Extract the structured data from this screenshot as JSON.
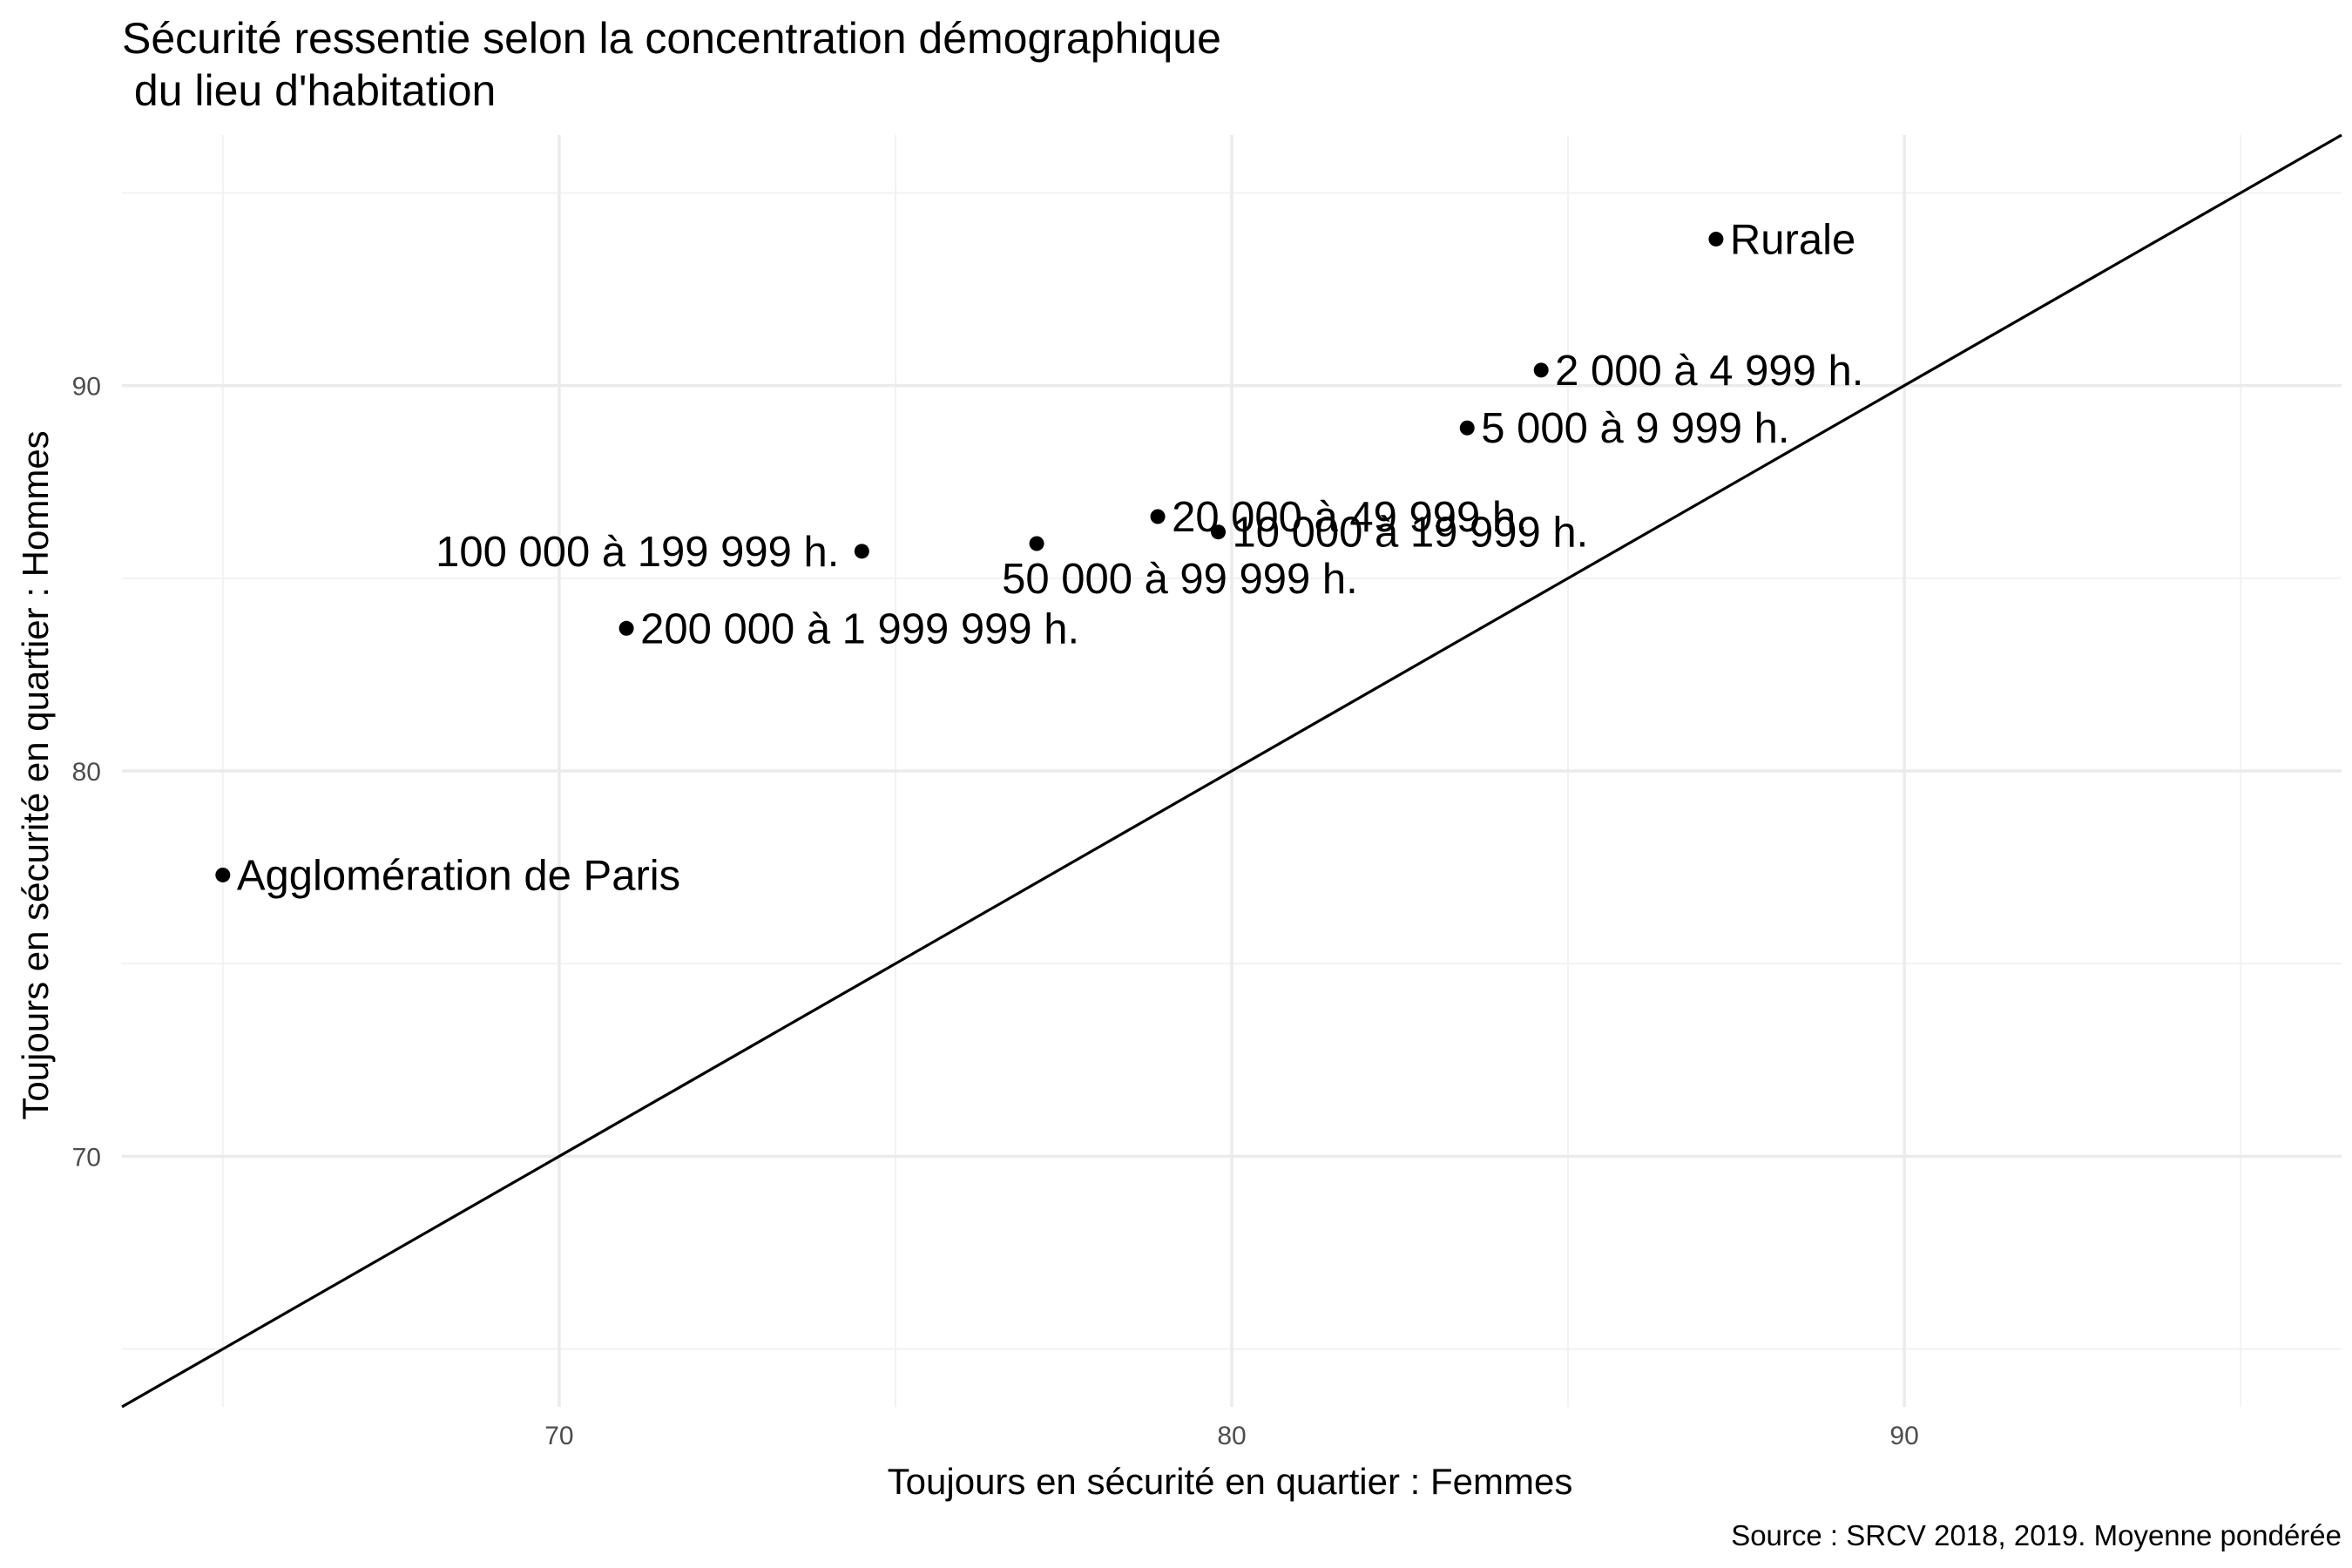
{
  "chart_data": {
    "type": "scatter",
    "title": "Sécurité ressentie selon la concentration démographique\n du lieu d'habitation",
    "xlabel": "Toujours en sécurité en quartier : Femmes",
    "ylabel": "Toujours en sécurité en quartier : Hommes",
    "caption": "Source : SRCV 2018, 2019. Moyenne pondérée",
    "xlim": [
      63.5,
      96.5
    ],
    "ylim": [
      63.5,
      96.5
    ],
    "x_ticks": [
      70,
      80,
      90
    ],
    "y_ticks": [
      70,
      80,
      90
    ],
    "grid": true,
    "reference_line": "y = x",
    "points": [
      {
        "label": "Rurale",
        "x": 87.2,
        "y": 93.8,
        "anchor": "right"
      },
      {
        "label": "2 000 à 4 999 h.",
        "x": 84.6,
        "y": 90.4,
        "anchor": "right"
      },
      {
        "label": "5 000 à 9 999 h.",
        "x": 83.5,
        "y": 88.9,
        "anchor": "right"
      },
      {
        "label": "20 000 à 49 999 h.",
        "x": 78.9,
        "y": 86.6,
        "anchor": "right"
      },
      {
        "label": "10 000 à 19 999 h.",
        "x": 79.8,
        "y": 86.2,
        "anchor": "right"
      },
      {
        "label": "50 000 à 99 999 h.",
        "x": 77.1,
        "y": 85.9,
        "anchor": "below"
      },
      {
        "label": "100 000 à 199 999 h.",
        "x": 74.5,
        "y": 85.7,
        "anchor": "left"
      },
      {
        "label": "200 000 à 1 999 999 h.",
        "x": 71.0,
        "y": 83.7,
        "anchor": "right"
      },
      {
        "label": "Agglomération de Paris",
        "x": 65.0,
        "y": 77.3,
        "anchor": "right"
      }
    ]
  }
}
